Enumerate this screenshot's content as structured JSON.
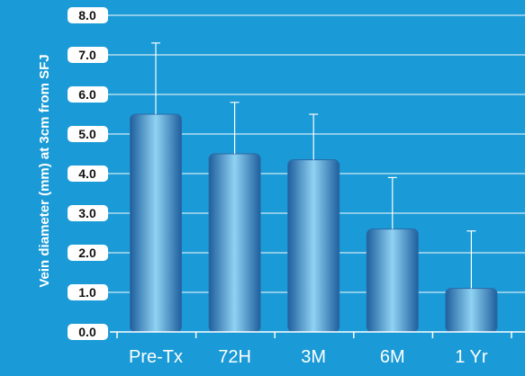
{
  "chart_data": {
    "type": "bar",
    "title": "",
    "xlabel": "",
    "ylabel": "Vein diameter (mm) at 3cm from SFJ",
    "categories": [
      "Pre-Tx",
      "72H",
      "3M",
      "6M",
      "1 Yr"
    ],
    "values": [
      5.5,
      4.5,
      4.35,
      2.6,
      1.1
    ],
    "error_upper": [
      1.8,
      1.3,
      1.15,
      1.3,
      1.45
    ],
    "ylim": [
      0,
      8
    ],
    "yticks": [
      0,
      1,
      2,
      3,
      4,
      5,
      6,
      7,
      8
    ],
    "ytick_labels": [
      "0.0",
      "1.0",
      "2.0",
      "3.0",
      "4.0",
      "5.0",
      "6.0",
      "7.0",
      "8.0"
    ],
    "grid": true,
    "legend": "none"
  },
  "colors": {
    "background": "#1a9ad6",
    "gridline": "#ffffff",
    "bar_edge": "#1f5f9e",
    "bar_center": "#8fd2f2",
    "error_bar": "#ffffff",
    "tick_box": "#ffffff"
  }
}
